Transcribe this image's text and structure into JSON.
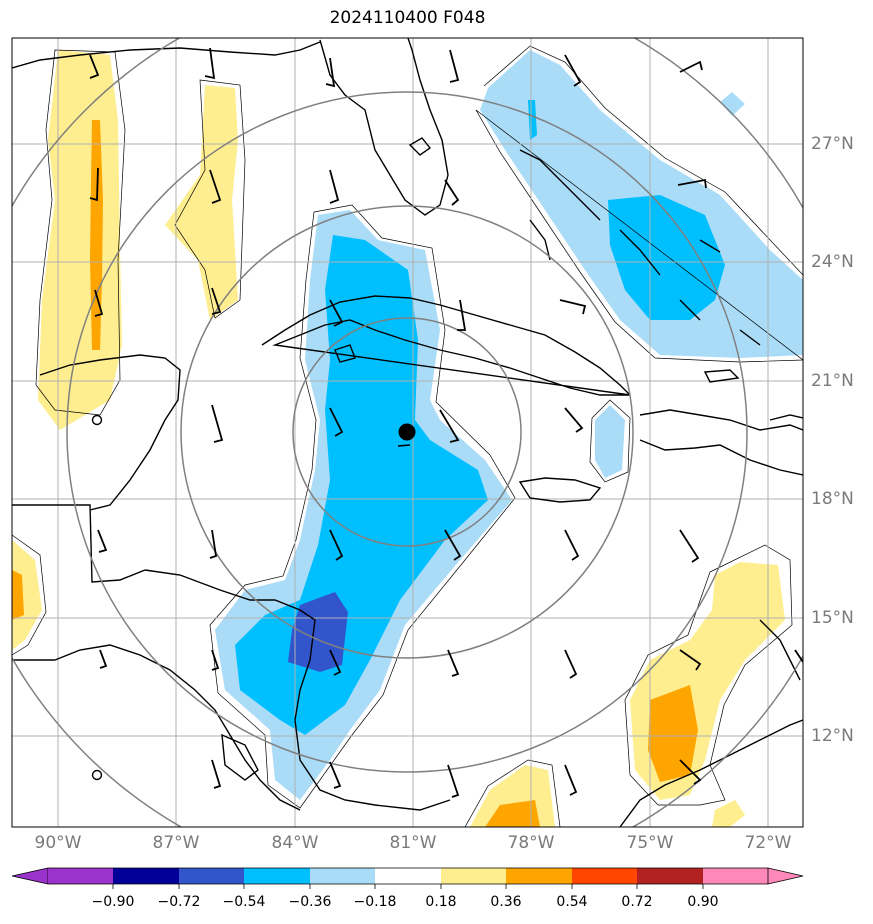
{
  "title": "2024110400 F048",
  "lon_labels": [
    "90°W",
    "87°W",
    "84°W",
    "81°W",
    "78°W",
    "75°W",
    "72°W"
  ],
  "lat_labels": [
    "27°N",
    "24°N",
    "21°N",
    "18°N",
    "15°N",
    "12°N"
  ],
  "colorbar": {
    "ticks": [
      "−0.90",
      "−0.72",
      "−0.54",
      "−0.36",
      "−0.18",
      "0.18",
      "0.36",
      "0.54",
      "0.72",
      "0.90"
    ],
    "colors": [
      "#9933cc",
      "#000099",
      "#3355cc",
      "#00bfff",
      "#aadcf8",
      "#ffffff",
      "#ffee8f",
      "#ffa500",
      "#ff4500",
      "#b22222",
      "#ff88bb"
    ]
  },
  "center_marker": {
    "lon": -81.1,
    "lat": 19.7
  },
  "range_rings": "concentric distance rings around center"
}
